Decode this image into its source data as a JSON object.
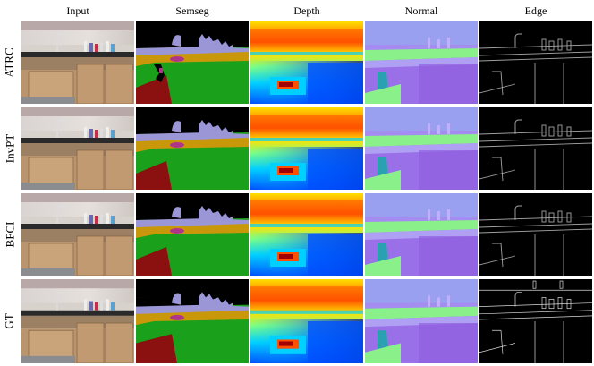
{
  "columns": [
    "Input",
    "Semseg",
    "Depth",
    "Normal",
    "Edge"
  ],
  "rows": [
    "ATRC",
    "InvPT",
    "BFCI",
    "GT"
  ],
  "palette": {
    "semseg": {
      "ceiling": "#000000",
      "counter": "#c8970a",
      "cabinet": "#1aa01a",
      "floor": "#8b1010",
      "objects": "#9b96d6",
      "sink": "#b0358a"
    },
    "depth": [
      "#00007f",
      "#0050ff",
      "#00d0ff",
      "#80ff80",
      "#ffe000",
      "#ff5000",
      "#a00000"
    ],
    "normal": {
      "wall": "#a58cf0",
      "floor": "#8af08a",
      "front": "#9a70e8",
      "ceiling": "#9aa0f0",
      "side": "#2aa0b0"
    }
  }
}
